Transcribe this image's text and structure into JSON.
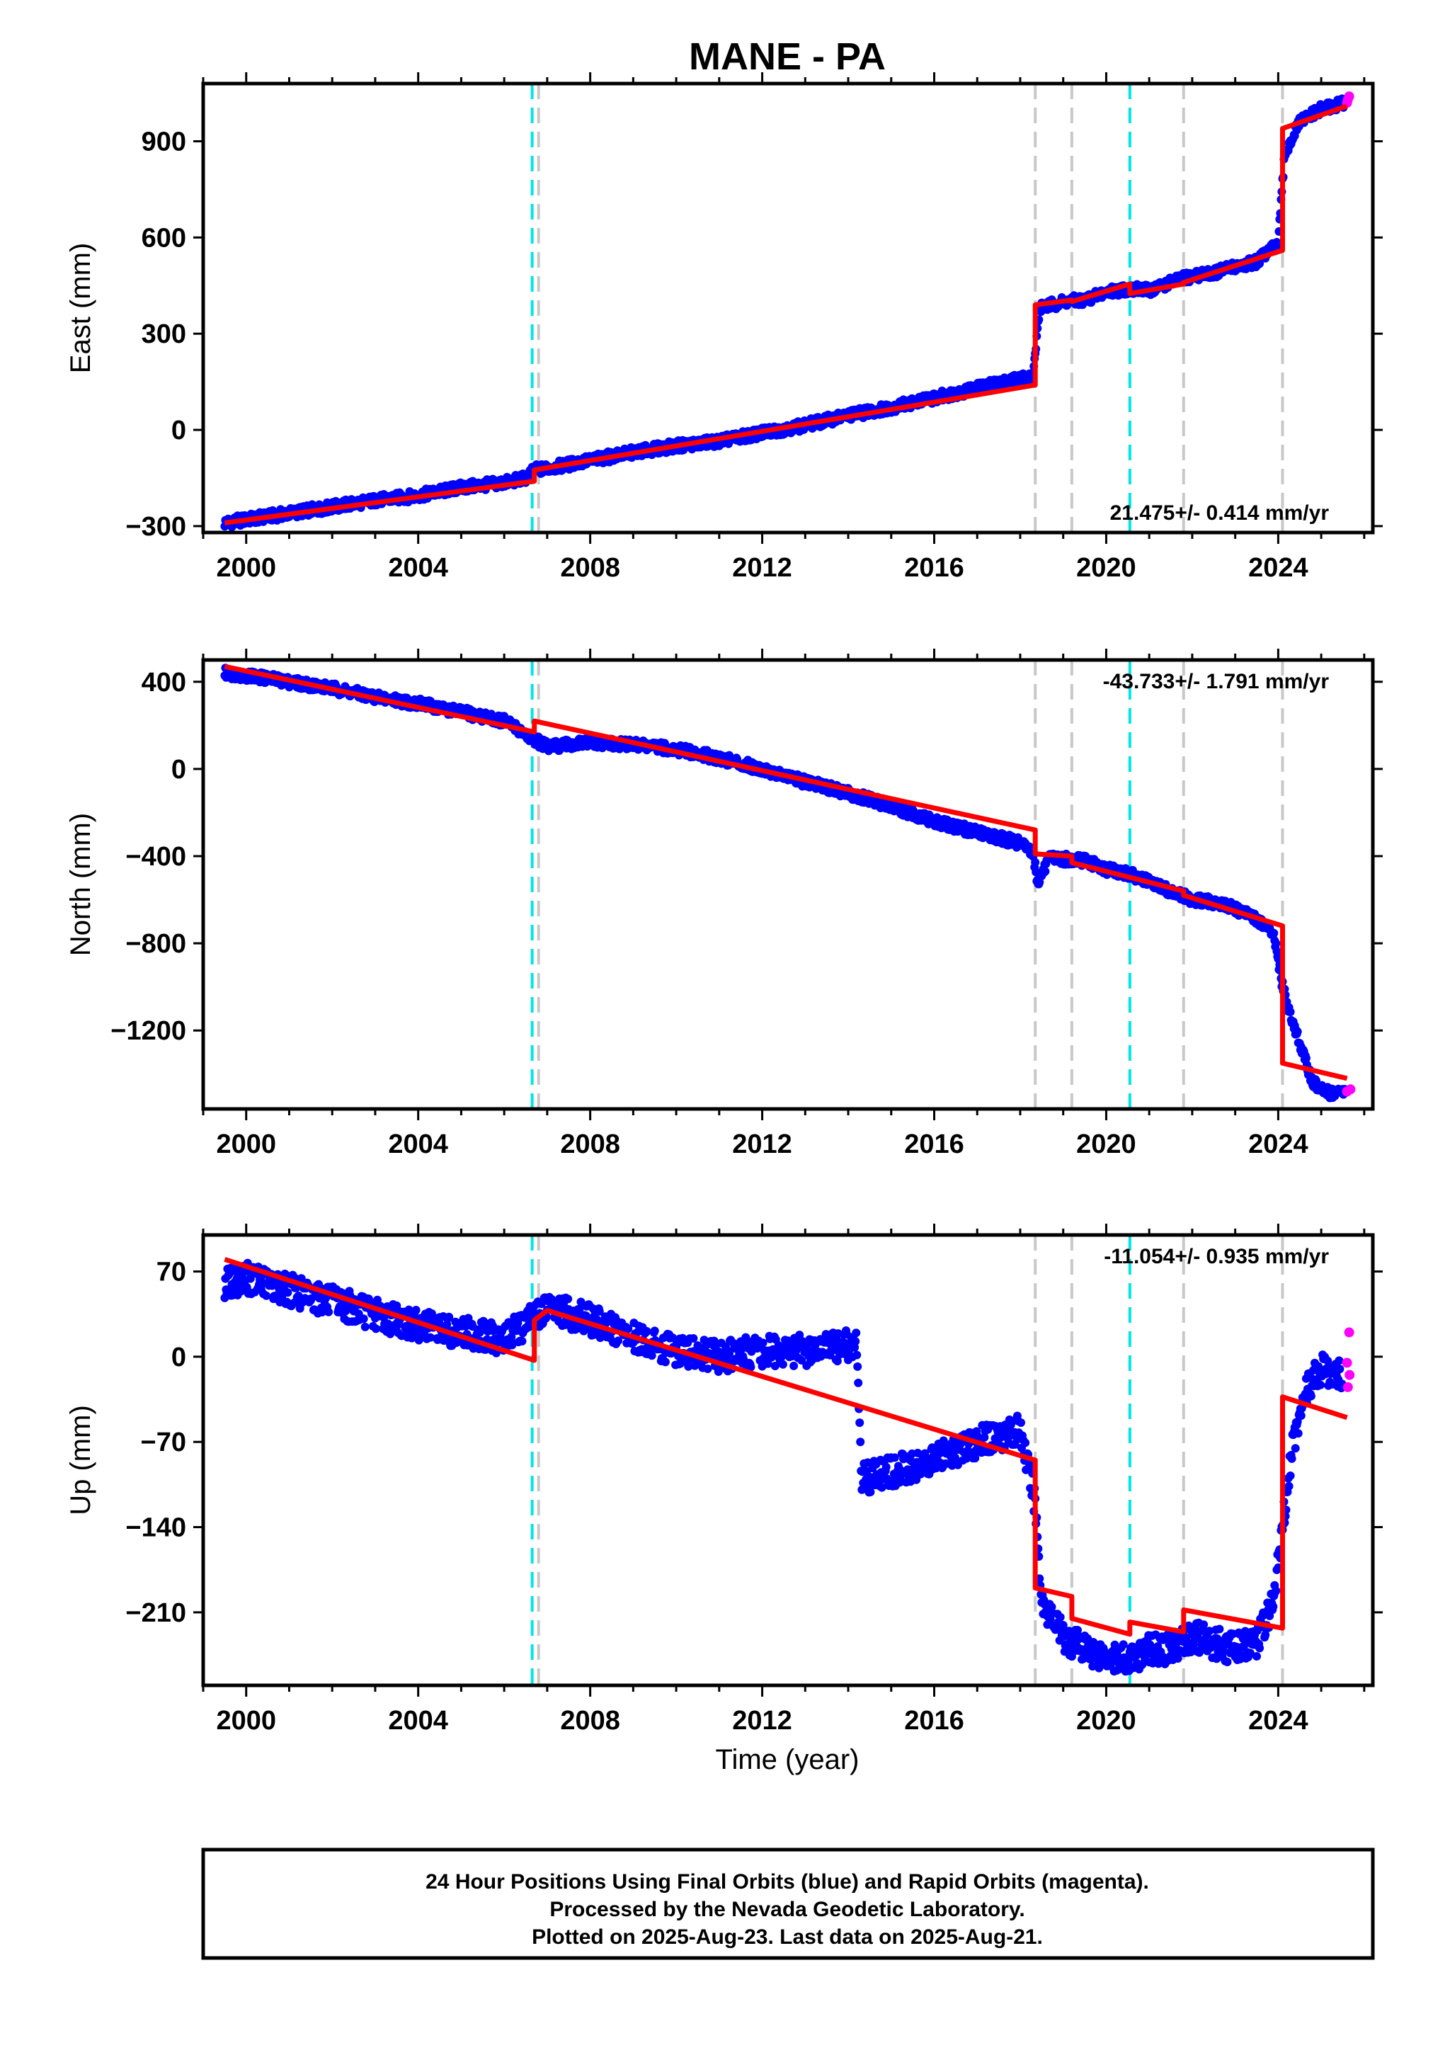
{
  "title": "MANE - PA",
  "colors": {
    "final_orbits": "#0000ff",
    "rapid_orbits": "#ff00ff",
    "model": "#ff0000",
    "equipment_change": "#c8c8c8",
    "earthquake": "#00e5e5"
  },
  "xlabel": "Time (year)",
  "footer": [
    "24 Hour Positions Using Final Orbits (blue) and Rapid Orbits (magenta).",
    "Processed by the Nevada Geodetic Laboratory.",
    "Plotted on 2025-Aug-23. Last data on 2025-Aug-21."
  ],
  "chart_data": [
    {
      "type": "scatter",
      "name": "East",
      "ylabel": "East (mm)",
      "rate": "21.475+/- 0.414 mm/yr",
      "rate_position": "bottom-right",
      "xlim": [
        1999.0,
        2026.2
      ],
      "ylim": [
        -320,
        1080
      ],
      "yticks": [
        -300,
        0,
        300,
        600,
        900
      ],
      "xticks": [
        2000,
        2004,
        2008,
        2012,
        2016,
        2020,
        2024
      ],
      "xtick_labels": [
        "2000",
        "2004",
        "2008",
        "2012",
        "2016",
        "2020",
        "2024"
      ],
      "grid": false,
      "equipment_changes": [
        2006.8,
        2018.35,
        2019.2,
        2021.8,
        2024.1
      ],
      "earthquakes": [
        2006.65,
        2020.55
      ],
      "final_orbits": [
        [
          1999.5,
          -290
        ],
        [
          2000.0,
          -280
        ],
        [
          2001.0,
          -260
        ],
        [
          2002.0,
          -240
        ],
        [
          2003.0,
          -220
        ],
        [
          2004.0,
          -205
        ],
        [
          2005.0,
          -180
        ],
        [
          2006.0,
          -165
        ],
        [
          2006.5,
          -150
        ],
        [
          2006.7,
          -125
        ],
        [
          2007.0,
          -120
        ],
        [
          2008.0,
          -95
        ],
        [
          2009.0,
          -70
        ],
        [
          2010.0,
          -50
        ],
        [
          2011.0,
          -35
        ],
        [
          2012.0,
          -10
        ],
        [
          2013.0,
          15
        ],
        [
          2014.0,
          45
        ],
        [
          2015.0,
          70
        ],
        [
          2016.0,
          100
        ],
        [
          2017.0,
          130
        ],
        [
          2018.0,
          160
        ],
        [
          2018.3,
          165
        ],
        [
          2018.45,
          380
        ],
        [
          2019.0,
          400
        ],
        [
          2019.5,
          405
        ],
        [
          2020.0,
          430
        ],
        [
          2020.5,
          440
        ],
        [
          2021.0,
          435
        ],
        [
          2021.5,
          460
        ],
        [
          2022.0,
          480
        ],
        [
          2022.5,
          490
        ],
        [
          2023.0,
          510
        ],
        [
          2023.5,
          525
        ],
        [
          2024.0,
          580
        ],
        [
          2024.15,
          860
        ],
        [
          2024.5,
          960
        ],
        [
          2025.0,
          1000
        ],
        [
          2025.3,
          1010
        ],
        [
          2025.55,
          1020
        ]
      ],
      "rapid_orbits": [
        [
          2025.6,
          1020
        ],
        [
          2025.65,
          1040
        ],
        [
          2025.62,
          1030
        ]
      ],
      "model": [
        [
          1999.5,
          -290
        ],
        [
          2006.7,
          -160
        ],
        [
          2006.7,
          -125
        ],
        [
          2018.35,
          140
        ],
        [
          2018.35,
          390
        ],
        [
          2019.2,
          405
        ],
        [
          2019.2,
          400
        ],
        [
          2020.55,
          455
        ],
        [
          2020.55,
          425
        ],
        [
          2021.8,
          455
        ],
        [
          2021.8,
          460
        ],
        [
          2024.1,
          560
        ],
        [
          2024.1,
          940
        ],
        [
          2025.6,
          1010
        ]
      ]
    },
    {
      "type": "scatter",
      "name": "North",
      "ylabel": "North (mm)",
      "rate": "-43.733+/- 1.791 mm/yr",
      "rate_position": "top-right",
      "xlim": [
        1999.0,
        2026.2
      ],
      "ylim": [
        -1560,
        500
      ],
      "yticks": [
        -1200,
        -800,
        -400,
        0,
        400
      ],
      "xticks": [
        2000,
        2004,
        2008,
        2012,
        2016,
        2020,
        2024
      ],
      "xtick_labels": [
        "2000",
        "2004",
        "2008",
        "2012",
        "2016",
        "2020",
        "2024"
      ],
      "grid": false,
      "equipment_changes": [
        2006.8,
        2018.35,
        2019.2,
        2021.8,
        2024.1
      ],
      "earthquakes": [
        2006.65,
        2020.55
      ],
      "final_orbits": [
        [
          1999.5,
          440
        ],
        [
          2000.0,
          430
        ],
        [
          2001.0,
          400
        ],
        [
          2002.0,
          370
        ],
        [
          2003.0,
          330
        ],
        [
          2004.0,
          300
        ],
        [
          2005.0,
          260
        ],
        [
          2006.0,
          220
        ],
        [
          2006.6,
          150
        ],
        [
          2007.0,
          100
        ],
        [
          2007.5,
          110
        ],
        [
          2008.0,
          120
        ],
        [
          2009.0,
          110
        ],
        [
          2010.0,
          90
        ],
        [
          2011.0,
          50
        ],
        [
          2012.0,
          0
        ],
        [
          2013.0,
          -60
        ],
        [
          2014.0,
          -110
        ],
        [
          2015.0,
          -170
        ],
        [
          2016.0,
          -240
        ],
        [
          2017.0,
          -290
        ],
        [
          2018.0,
          -340
        ],
        [
          2018.3,
          -380
        ],
        [
          2018.4,
          -520
        ],
        [
          2018.7,
          -410
        ],
        [
          2019.5,
          -420
        ],
        [
          2020.0,
          -460
        ],
        [
          2020.5,
          -480
        ],
        [
          2021.0,
          -520
        ],
        [
          2021.5,
          -560
        ],
        [
          2022.0,
          -600
        ],
        [
          2022.5,
          -610
        ],
        [
          2023.0,
          -640
        ],
        [
          2023.5,
          -690
        ],
        [
          2023.9,
          -760
        ],
        [
          2024.1,
          -1000
        ],
        [
          2024.4,
          -1200
        ],
        [
          2024.8,
          -1440
        ],
        [
          2025.2,
          -1490
        ],
        [
          2025.6,
          -1480
        ]
      ],
      "rapid_orbits": [
        [
          2025.6,
          -1480
        ],
        [
          2025.68,
          -1470
        ]
      ],
      "model": [
        [
          1999.5,
          470
        ],
        [
          2006.7,
          170
        ],
        [
          2006.7,
          220
        ],
        [
          2018.35,
          -280
        ],
        [
          2018.35,
          -390
        ],
        [
          2019.2,
          -400
        ],
        [
          2019.2,
          -430
        ],
        [
          2021.8,
          -560
        ],
        [
          2021.8,
          -580
        ],
        [
          2024.1,
          -720
        ],
        [
          2024.1,
          -1350
        ],
        [
          2025.6,
          -1420
        ]
      ]
    },
    {
      "type": "scatter",
      "name": "Up",
      "ylabel": "Up (mm)",
      "rate": "-11.054+/- 0.935 mm/yr",
      "rate_position": "top-right",
      "xlim": [
        1999.0,
        2026.2
      ],
      "ylim": [
        -270,
        100
      ],
      "yticks": [
        -210,
        -140,
        -70,
        0,
        70
      ],
      "xticks": [
        2000,
        2004,
        2008,
        2012,
        2016,
        2020,
        2024
      ],
      "xtick_labels": [
        "2000",
        "2004",
        "2008",
        "2012",
        "2016",
        "2020",
        "2024"
      ],
      "grid": false,
      "equipment_changes": [
        2006.8,
        2018.35,
        2019.2,
        2021.8,
        2024.1
      ],
      "earthquakes": [
        2006.65,
        2020.55
      ],
      "final_orbits": [
        [
          1999.5,
          60
        ],
        [
          2000.0,
          65
        ],
        [
          2001.0,
          55
        ],
        [
          2002.0,
          45
        ],
        [
          2003.0,
          35
        ],
        [
          2004.0,
          25
        ],
        [
          2005.0,
          20
        ],
        [
          2006.0,
          15
        ],
        [
          2006.6,
          30
        ],
        [
          2007.0,
          40
        ],
        [
          2008.0,
          30
        ],
        [
          2009.0,
          15
        ],
        [
          2010.0,
          5
        ],
        [
          2011.0,
          0
        ],
        [
          2012.0,
          5
        ],
        [
          2013.0,
          5
        ],
        [
          2014.2,
          10
        ],
        [
          2014.3,
          -100
        ],
        [
          2015.0,
          -95
        ],
        [
          2016.0,
          -85
        ],
        [
          2017.0,
          -70
        ],
        [
          2018.0,
          -60
        ],
        [
          2018.35,
          -120
        ],
        [
          2018.5,
          -200
        ],
        [
          2019.0,
          -230
        ],
        [
          2019.5,
          -240
        ],
        [
          2020.0,
          -245
        ],
        [
          2020.5,
          -250
        ],
        [
          2021.0,
          -240
        ],
        [
          2021.5,
          -240
        ],
        [
          2022.0,
          -230
        ],
        [
          2022.5,
          -235
        ],
        [
          2023.0,
          -240
        ],
        [
          2023.5,
          -235
        ],
        [
          2023.9,
          -200
        ],
        [
          2024.1,
          -140
        ],
        [
          2024.3,
          -80
        ],
        [
          2024.6,
          -30
        ],
        [
          2025.0,
          -10
        ],
        [
          2025.5,
          -15
        ]
      ],
      "rapid_orbits": [
        [
          2025.6,
          -5
        ],
        [
          2025.65,
          20
        ],
        [
          2025.62,
          -25
        ],
        [
          2025.66,
          -15
        ]
      ],
      "model": [
        [
          1999.5,
          80
        ],
        [
          2006.7,
          -3
        ],
        [
          2006.7,
          30
        ],
        [
          2007.0,
          38
        ],
        [
          2018.35,
          -85
        ],
        [
          2018.35,
          -190
        ],
        [
          2019.2,
          -197
        ],
        [
          2019.2,
          -215
        ],
        [
          2020.55,
          -228
        ],
        [
          2020.55,
          -218
        ],
        [
          2021.8,
          -226
        ],
        [
          2021.8,
          -208
        ],
        [
          2024.1,
          -223
        ],
        [
          2024.1,
          -33
        ],
        [
          2025.6,
          -50
        ]
      ]
    }
  ]
}
